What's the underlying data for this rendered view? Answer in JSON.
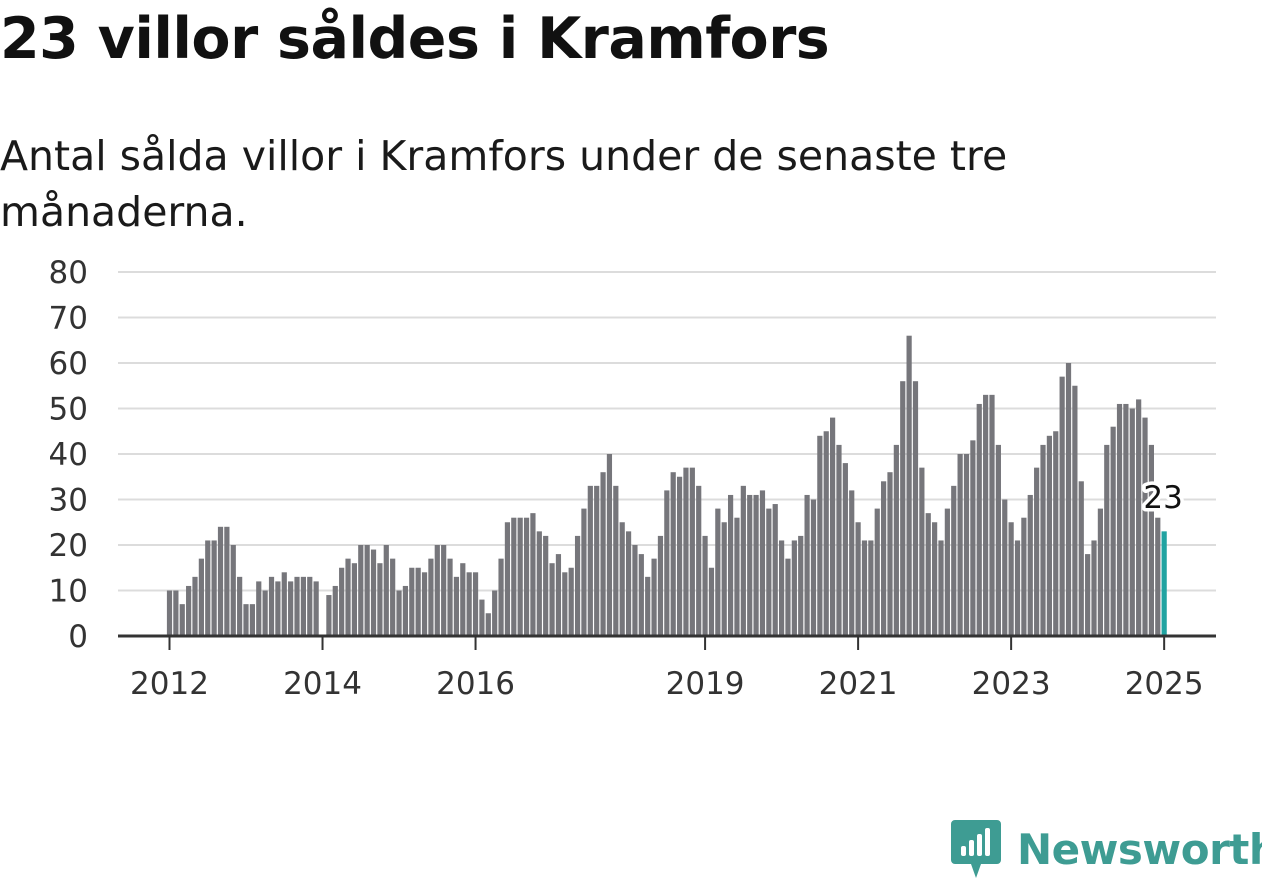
{
  "title": "23 villor såldes i Kramfors",
  "subtitle": "Antal sålda villor i Kramfors under de senaste tre månaderna.",
  "brand": {
    "name": "Newsworthy",
    "color": "#3e9c93",
    "icon": "newsworthy-logo-icon"
  },
  "colors": {
    "bar": "#76767b",
    "highlight": "#21a3a1",
    "grid": "#dcdcdc",
    "axis": "#333333"
  },
  "chart_data": {
    "type": "bar",
    "ylim": [
      0,
      80
    ],
    "yticks": [
      "0",
      "10",
      "20",
      "30",
      "40",
      "50",
      "60",
      "70",
      "80"
    ],
    "xticks": [
      {
        "label": "2012",
        "index": 0
      },
      {
        "label": "2014",
        "index": 24
      },
      {
        "label": "2016",
        "index": 48
      },
      {
        "label": "2019",
        "index": 84
      },
      {
        "label": "2021",
        "index": 108
      },
      {
        "label": "2023",
        "index": 132
      },
      {
        "label": "2025",
        "index": 156
      }
    ],
    "values": [
      10,
      10,
      7,
      11,
      13,
      17,
      21,
      21,
      24,
      24,
      20,
      13,
      7,
      7,
      12,
      10,
      13,
      12,
      14,
      12,
      13,
      13,
      13,
      12,
      null,
      9,
      11,
      15,
      17,
      16,
      20,
      20,
      19,
      16,
      20,
      17,
      10,
      11,
      15,
      15,
      14,
      17,
      20,
      20,
      17,
      13,
      16,
      14,
      14,
      8,
      5,
      10,
      17,
      25,
      26,
      26,
      26,
      27,
      23,
      22,
      16,
      18,
      14,
      15,
      22,
      28,
      33,
      33,
      36,
      40,
      33,
      25,
      23,
      20,
      18,
      13,
      17,
      22,
      32,
      36,
      35,
      37,
      37,
      33,
      22,
      15,
      28,
      25,
      31,
      26,
      33,
      31,
      31,
      32,
      28,
      29,
      21,
      17,
      21,
      22,
      31,
      30,
      44,
      45,
      48,
      42,
      38,
      32,
      25,
      21,
      21,
      28,
      34,
      36,
      42,
      56,
      66,
      56,
      37,
      27,
      25,
      21,
      28,
      33,
      40,
      40,
      43,
      51,
      53,
      53,
      42,
      30,
      25,
      21,
      26,
      31,
      37,
      42,
      44,
      45,
      57,
      60,
      55,
      34,
      18,
      21,
      28,
      42,
      46,
      51,
      51,
      50,
      52,
      48,
      42,
      26,
      23
    ],
    "highlight": {
      "index": 156,
      "label": "23"
    }
  }
}
